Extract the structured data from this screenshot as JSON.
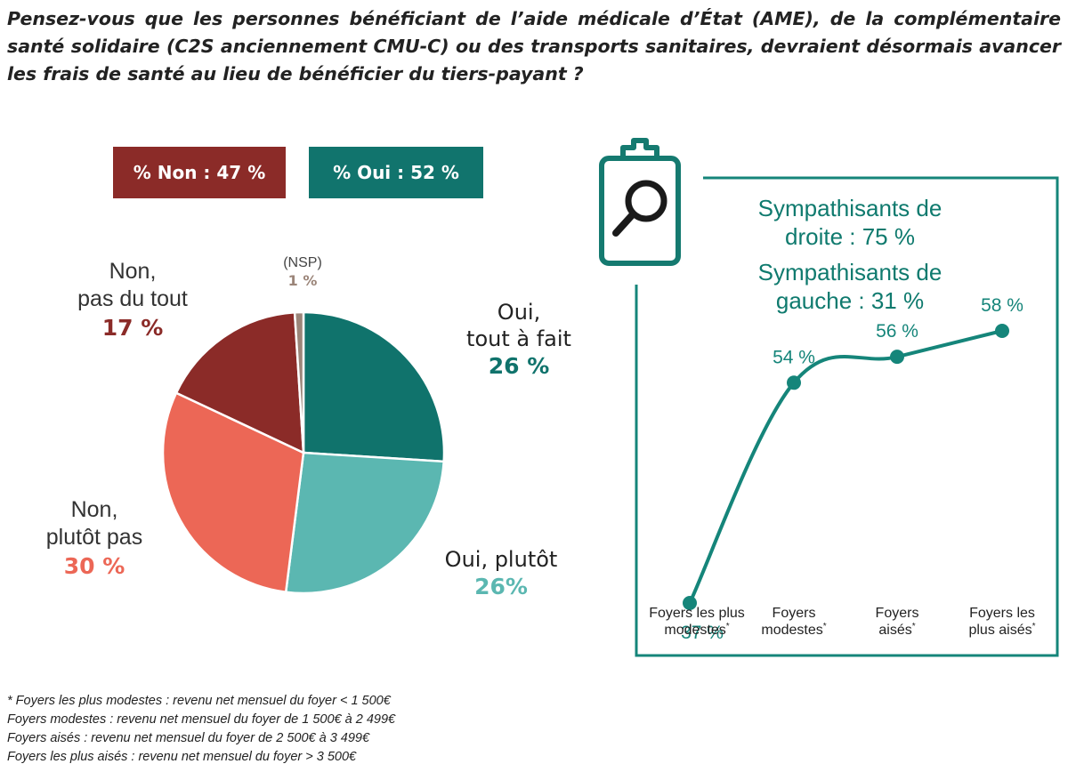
{
  "question": "Pensez-vous que les personnes bénéficiant de l’aide médicale d’État (AME), de la complémentaire santé solidaire (C2S anciennement CMU-C) ou des transports sanitaires, devraient désormais avancer les frais de santé au lieu de bénéficier du tiers-payant ?",
  "badges": {
    "non": "% Non : 47 %",
    "oui": "% Oui : 52 %"
  },
  "colors": {
    "non": "#8b2b28",
    "oui": "#11746d",
    "oui_tout_a_fait": "#10736c",
    "oui_plutot": "#5bb7b1",
    "non_plutot_pas": "#ec6756",
    "non_pas_du_tout": "#8b2b28",
    "nsp": "#9b8579",
    "line": "#15857a"
  },
  "icons": {
    "clipboard": "clipboard-magnifier-icon"
  },
  "pie_labels": {
    "nsp": {
      "line1": "(NSP)",
      "pct": "1 %"
    },
    "non_pas_du_tout": {
      "line1": "Non,",
      "line2": "pas du tout",
      "pct": "17 %"
    },
    "oui_tout_a_fait": {
      "line1": "Oui,",
      "line2": "tout à fait",
      "pct": "26 %"
    },
    "non_plutot_pas": {
      "line1": "Non,",
      "line2": "plutôt pas",
      "pct": "30 %"
    },
    "oui_plutot": {
      "line1": "Oui, plutôt",
      "pct": "26%"
    }
  },
  "sympathisants": {
    "droite": {
      "line1": "Sympathisants de",
      "line2": "droite : 75 %"
    },
    "gauche": {
      "line1": "Sympathisants de",
      "line2": "gauche : 31 %"
    }
  },
  "footnotes": [
    "* Foyers les plus modestes : revenu net mensuel du foyer < 1 500€",
    "Foyers modestes : revenu net mensuel du foyer de 1 500€ à 2 499€",
    "Foyers aisés : revenu net mensuel du foyer de 2 500€ à 3 499€",
    "Foyers les plus aisés : revenu net mensuel du foyer > 3 500€"
  ],
  "chart_data": [
    {
      "type": "pie",
      "labels": [
        "Oui, tout à fait",
        "Oui, plutôt",
        "Non, plutôt pas",
        "Non, pas du tout",
        "(NSP)"
      ],
      "values": [
        26,
        26,
        30,
        17,
        1
      ],
      "value_labels": [
        "26 %",
        "26%",
        "30 %",
        "17 %",
        "1 %"
      ],
      "colors": [
        "#10736c",
        "#5bb7b1",
        "#ec6756",
        "#8b2b28",
        "#9b8579"
      ]
    },
    {
      "type": "line",
      "categories": [
        [
          "Foyers les plus",
          "modestes*"
        ],
        [
          "Foyers",
          "modestes*"
        ],
        [
          "Foyers",
          "aisés*"
        ],
        [
          "Foyers les",
          "plus aisés*"
        ]
      ],
      "values": [
        37,
        54,
        56,
        58
      ],
      "value_labels": [
        "37 %",
        "54 %",
        "56 %",
        "58 %"
      ],
      "ylim": [
        30,
        65
      ],
      "grid": false,
      "color": "#15857a"
    }
  ]
}
